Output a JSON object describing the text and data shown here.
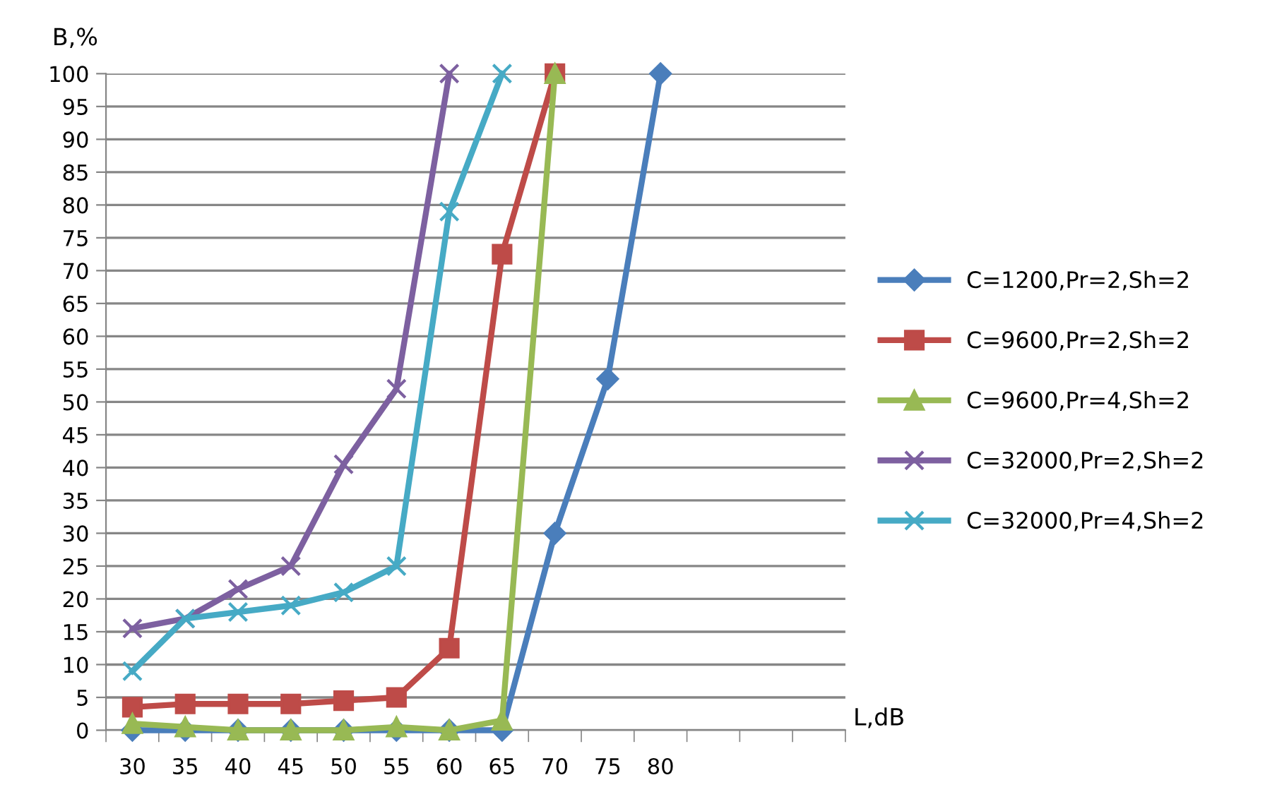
{
  "chart_data": {
    "type": "line",
    "xlabel": "L,dB",
    "ylabel": "B,%",
    "categories": [
      "30",
      "35",
      "40",
      "45",
      "50",
      "55",
      "60",
      "65",
      "70",
      "75",
      "80",
      null,
      null,
      null
    ],
    "series": [
      {
        "name": "C=1200,Pr=2,Sh=2",
        "color": "#4a7ebb",
        "marker": "diamond",
        "values": [
          0,
          0,
          0,
          0,
          0,
          0,
          0,
          0,
          30,
          53.5,
          100,
          null,
          null,
          null
        ]
      },
      {
        "name": "C=9600,Pr=2,Sh=2",
        "color": "#be4b48",
        "marker": "square",
        "values": [
          3.5,
          4,
          4,
          4,
          4.5,
          5,
          12.5,
          72.5,
          100,
          null,
          null,
          null,
          null,
          null
        ]
      },
      {
        "name": "C=9600,Pr=4,Sh=2",
        "color": "#98b954",
        "marker": "triangle",
        "values": [
          1,
          0.5,
          0,
          0,
          0,
          0.5,
          0,
          1.5,
          100,
          null,
          null,
          null,
          null,
          null
        ]
      },
      {
        "name": "C=32000,Pr=2,Sh=2",
        "color": "#7d60a0",
        "marker": "cross",
        "values": [
          15.5,
          17,
          21.5,
          25,
          40.5,
          52,
          100,
          null,
          null,
          null,
          null,
          null,
          null,
          null
        ]
      },
      {
        "name": "C=32000,Pr=4,Sh=2",
        "color": "#46aac5",
        "marker": "cross",
        "values": [
          9,
          17,
          18,
          19,
          21,
          25,
          79,
          100,
          null,
          null,
          null,
          null,
          null,
          null
        ]
      }
    ],
    "ylim": [
      0,
      100
    ],
    "yticks": [
      0,
      5,
      10,
      15,
      20,
      25,
      30,
      35,
      40,
      45,
      50,
      55,
      60,
      65,
      70,
      75,
      80,
      85,
      90,
      95,
      100
    ],
    "grid": "y",
    "legend": "right"
  }
}
